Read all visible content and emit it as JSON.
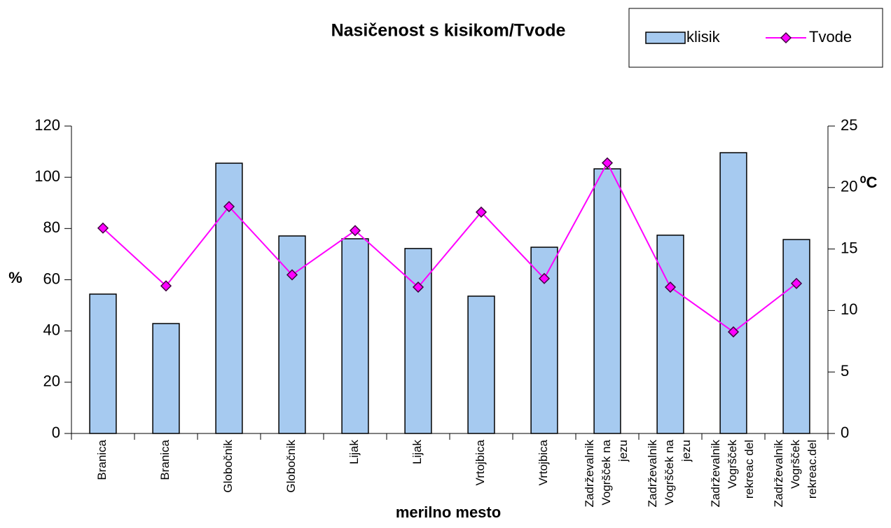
{
  "chart_data": {
    "type": "bar_line",
    "title": "Nasičenost s kisikom/Tvode",
    "xlabel": "merilno mesto",
    "ylabel": "%",
    "y2label": "⁰C",
    "categories": [
      "Branica",
      "Branica",
      "Globočnik",
      "Globočnik",
      "Lijak",
      "Lijak",
      "Vrtojbica",
      "Vrtojbica",
      "Zadrževalnik\nVogršček na\njezu",
      "Zadrževalnik\nVogršček na\njezu",
      "Zadrževalnik\nVogršček\nrekreac del",
      "Zadrževalnik\nVogršček\nrekreac.del"
    ],
    "series": [
      {
        "name": "klisik",
        "color": "#a6caf0",
        "type": "bar",
        "values": [
          54.4,
          42.9,
          105.5,
          77.1,
          76,
          72.2,
          53.6,
          72.7,
          103.3,
          77.4,
          109.6,
          75.7
        ]
      },
      {
        "name": "Tvode",
        "color": "#ff00ff",
        "type": "line",
        "axis": "y2",
        "values": [
          16.7,
          12.0,
          18.45,
          12.9,
          16.5,
          11.9,
          18.0,
          12.6,
          22.0,
          11.9,
          8.26,
          12.2
        ]
      }
    ],
    "ylim": [
      0,
      120
    ],
    "yticks": [
      0,
      20,
      40,
      60,
      80,
      100,
      120
    ],
    "y2lim": [
      0,
      25
    ],
    "y2ticks": [
      0,
      5,
      10,
      15,
      20,
      25
    ],
    "legend": "top-right"
  }
}
